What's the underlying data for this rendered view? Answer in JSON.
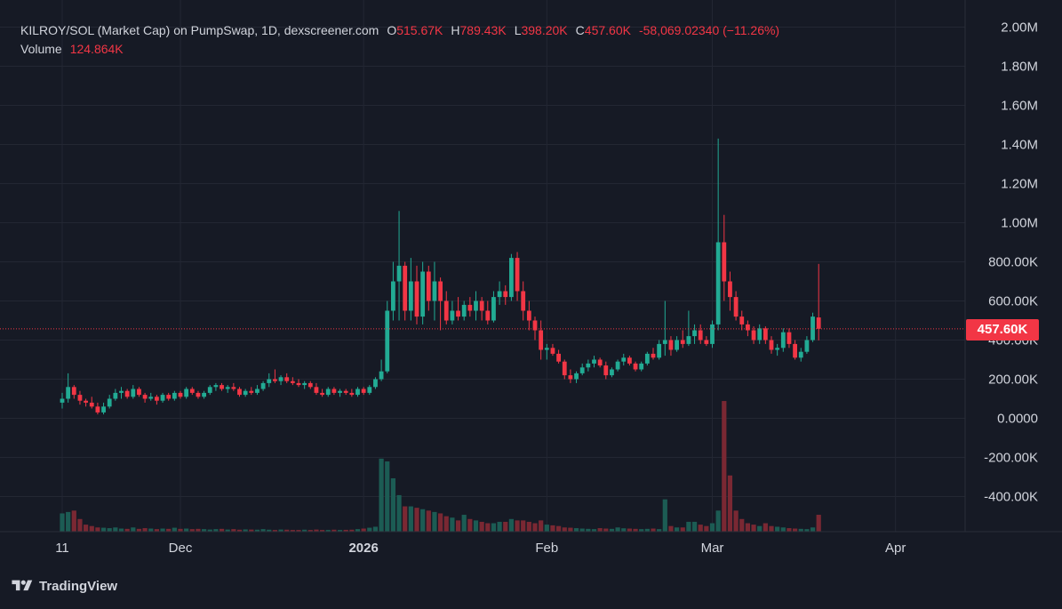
{
  "legend": {
    "title": "KILROY/SOL (Market Cap) on PumpSwap, 1D, dexscreener.com",
    "open_label": "O",
    "open": "515.67K",
    "high_label": "H",
    "high": "789.43K",
    "low_label": "L",
    "low": "398.20K",
    "close_label": "C",
    "close": "457.60K",
    "change": "-58,069.02340 (−11.26%)",
    "volume_label": "Volume",
    "volume": "124.864K"
  },
  "last_price_label": "457.60K",
  "branding": "TradingView",
  "colors": {
    "up": "#22ab94",
    "down": "#f23645",
    "background": "#161a25",
    "grid": "#232733",
    "text": "#d1d4dc",
    "volume_up": "#1c5c54",
    "volume_down": "#7a2833"
  },
  "chart_data": {
    "type": "candlestick",
    "title": "KILROY/SOL (Market Cap) on PumpSwap, 1D, dexscreener.com",
    "ylim": [
      -560000,
      2030000
    ],
    "y_ticks": [
      {
        "value": 2000000,
        "label": "2.00M"
      },
      {
        "value": 1800000,
        "label": "1.80M"
      },
      {
        "value": 1600000,
        "label": "1.60M"
      },
      {
        "value": 1400000,
        "label": "1.40M"
      },
      {
        "value": 1200000,
        "label": "1.20M"
      },
      {
        "value": 1000000,
        "label": "1.00M"
      },
      {
        "value": 800000,
        "label": "800.00K"
      },
      {
        "value": 600000,
        "label": "600.00K"
      },
      {
        "value": 400000,
        "label": "400.00K"
      },
      {
        "value": 200000,
        "label": "200.00K"
      },
      {
        "value": 0,
        "label": "0.0000"
      },
      {
        "value": -200000,
        "label": "-200.00K"
      },
      {
        "value": -400000,
        "label": "-400.00K"
      }
    ],
    "x_ticks": [
      {
        "day": 0,
        "label": "11"
      },
      {
        "day": 20,
        "label": "Dec"
      },
      {
        "day": 51,
        "label": "2026"
      },
      {
        "day": 82,
        "label": "Feb"
      },
      {
        "day": 110,
        "label": "Mar"
      },
      {
        "day": 141,
        "label": "Apr"
      }
    ],
    "grid": true,
    "last_price": 457600,
    "series": [
      {
        "name": "Market Cap",
        "ohlc": [
          [
            80000,
            130000,
            50000,
            100000
          ],
          [
            100000,
            230000,
            80000,
            160000
          ],
          [
            160000,
            170000,
            100000,
            120000
          ],
          [
            120000,
            140000,
            70000,
            90000
          ],
          [
            90000,
            100000,
            60000,
            80000
          ],
          [
            80000,
            110000,
            50000,
            60000
          ],
          [
            60000,
            80000,
            20000,
            30000
          ],
          [
            30000,
            80000,
            20000,
            60000
          ],
          [
            60000,
            120000,
            50000,
            100000
          ],
          [
            100000,
            150000,
            90000,
            130000
          ],
          [
            130000,
            160000,
            100000,
            140000
          ],
          [
            140000,
            150000,
            100000,
            110000
          ],
          [
            110000,
            170000,
            100000,
            150000
          ],
          [
            150000,
            160000,
            110000,
            120000
          ],
          [
            120000,
            130000,
            80000,
            100000
          ],
          [
            100000,
            130000,
            90000,
            110000
          ],
          [
            110000,
            120000,
            70000,
            90000
          ],
          [
            90000,
            130000,
            80000,
            120000
          ],
          [
            120000,
            130000,
            90000,
            100000
          ],
          [
            100000,
            140000,
            90000,
            130000
          ],
          [
            130000,
            140000,
            100000,
            110000
          ],
          [
            110000,
            160000,
            100000,
            150000
          ],
          [
            150000,
            160000,
            120000,
            130000
          ],
          [
            130000,
            140000,
            100000,
            110000
          ],
          [
            110000,
            140000,
            100000,
            130000
          ],
          [
            130000,
            170000,
            120000,
            160000
          ],
          [
            160000,
            180000,
            140000,
            170000
          ],
          [
            170000,
            180000,
            140000,
            150000
          ],
          [
            150000,
            170000,
            130000,
            160000
          ],
          [
            160000,
            180000,
            140000,
            150000
          ],
          [
            150000,
            160000,
            110000,
            120000
          ],
          [
            120000,
            150000,
            110000,
            140000
          ],
          [
            140000,
            160000,
            120000,
            130000
          ],
          [
            130000,
            170000,
            120000,
            150000
          ],
          [
            150000,
            190000,
            140000,
            180000
          ],
          [
            180000,
            230000,
            160000,
            200000
          ],
          [
            200000,
            250000,
            180000,
            190000
          ],
          [
            190000,
            220000,
            170000,
            210000
          ],
          [
            210000,
            230000,
            180000,
            190000
          ],
          [
            190000,
            210000,
            170000,
            180000
          ],
          [
            180000,
            200000,
            160000,
            170000
          ],
          [
            170000,
            190000,
            150000,
            180000
          ],
          [
            180000,
            190000,
            150000,
            160000
          ],
          [
            160000,
            180000,
            120000,
            130000
          ],
          [
            130000,
            150000,
            110000,
            120000
          ],
          [
            120000,
            160000,
            110000,
            150000
          ],
          [
            150000,
            160000,
            120000,
            130000
          ],
          [
            130000,
            150000,
            110000,
            140000
          ],
          [
            140000,
            150000,
            120000,
            130000
          ],
          [
            130000,
            150000,
            110000,
            120000
          ],
          [
            120000,
            160000,
            110000,
            150000
          ],
          [
            150000,
            160000,
            120000,
            130000
          ],
          [
            130000,
            170000,
            120000,
            160000
          ],
          [
            160000,
            210000,
            150000,
            200000
          ],
          [
            200000,
            300000,
            190000,
            240000
          ],
          [
            240000,
            600000,
            230000,
            550000
          ],
          [
            550000,
            800000,
            500000,
            700000
          ],
          [
            700000,
            1060000,
            500000,
            780000
          ],
          [
            780000,
            800000,
            500000,
            550000
          ],
          [
            550000,
            820000,
            500000,
            700000
          ],
          [
            700000,
            780000,
            480000,
            520000
          ],
          [
            520000,
            800000,
            480000,
            750000
          ],
          [
            750000,
            780000,
            550000,
            600000
          ],
          [
            600000,
            800000,
            500000,
            700000
          ],
          [
            700000,
            720000,
            450000,
            600000
          ],
          [
            600000,
            650000,
            480000,
            500000
          ],
          [
            500000,
            600000,
            480000,
            550000
          ],
          [
            550000,
            620000,
            500000,
            520000
          ],
          [
            520000,
            600000,
            500000,
            580000
          ],
          [
            580000,
            620000,
            520000,
            550000
          ],
          [
            550000,
            650000,
            500000,
            600000
          ],
          [
            600000,
            620000,
            500000,
            550000
          ],
          [
            550000,
            600000,
            480000,
            500000
          ],
          [
            500000,
            650000,
            490000,
            620000
          ],
          [
            620000,
            700000,
            580000,
            650000
          ],
          [
            650000,
            680000,
            580000,
            620000
          ],
          [
            620000,
            840000,
            600000,
            820000
          ],
          [
            820000,
            850000,
            600000,
            650000
          ],
          [
            650000,
            700000,
            500000,
            550000
          ],
          [
            550000,
            600000,
            450000,
            500000
          ],
          [
            500000,
            520000,
            400000,
            450000
          ],
          [
            450000,
            500000,
            300000,
            350000
          ],
          [
            350000,
            380000,
            300000,
            360000
          ],
          [
            360000,
            380000,
            320000,
            330000
          ],
          [
            330000,
            350000,
            280000,
            290000
          ],
          [
            290000,
            300000,
            200000,
            220000
          ],
          [
            220000,
            250000,
            180000,
            200000
          ],
          [
            200000,
            240000,
            180000,
            230000
          ],
          [
            230000,
            280000,
            220000,
            260000
          ],
          [
            260000,
            300000,
            240000,
            280000
          ],
          [
            280000,
            320000,
            260000,
            300000
          ],
          [
            300000,
            310000,
            260000,
            270000
          ],
          [
            270000,
            290000,
            200000,
            220000
          ],
          [
            220000,
            260000,
            210000,
            250000
          ],
          [
            250000,
            300000,
            240000,
            290000
          ],
          [
            290000,
            330000,
            270000,
            310000
          ],
          [
            310000,
            320000,
            270000,
            280000
          ],
          [
            280000,
            290000,
            240000,
            250000
          ],
          [
            250000,
            290000,
            240000,
            280000
          ],
          [
            280000,
            340000,
            270000,
            330000
          ],
          [
            330000,
            360000,
            300000,
            310000
          ],
          [
            310000,
            400000,
            300000,
            380000
          ],
          [
            380000,
            600000,
            320000,
            400000
          ],
          [
            400000,
            420000,
            320000,
            350000
          ],
          [
            350000,
            420000,
            340000,
            400000
          ],
          [
            400000,
            450000,
            360000,
            380000
          ],
          [
            380000,
            550000,
            370000,
            420000
          ],
          [
            420000,
            480000,
            380000,
            450000
          ],
          [
            450000,
            480000,
            380000,
            400000
          ],
          [
            400000,
            420000,
            370000,
            380000
          ],
          [
            380000,
            500000,
            360000,
            480000
          ],
          [
            480000,
            1430000,
            450000,
            900000
          ],
          [
            900000,
            1040000,
            600000,
            700000
          ],
          [
            700000,
            750000,
            550000,
            620000
          ],
          [
            620000,
            650000,
            500000,
            520000
          ],
          [
            520000,
            550000,
            450000,
            480000
          ],
          [
            480000,
            500000,
            420000,
            450000
          ],
          [
            450000,
            470000,
            380000,
            400000
          ],
          [
            400000,
            480000,
            380000,
            460000
          ],
          [
            460000,
            470000,
            380000,
            400000
          ],
          [
            400000,
            420000,
            330000,
            350000
          ],
          [
            350000,
            380000,
            320000,
            360000
          ],
          [
            360000,
            460000,
            340000,
            440000
          ],
          [
            440000,
            460000,
            360000,
            380000
          ],
          [
            380000,
            400000,
            300000,
            310000
          ],
          [
            310000,
            360000,
            290000,
            340000
          ],
          [
            340000,
            420000,
            330000,
            400000
          ],
          [
            400000,
            540000,
            390000,
            520000
          ],
          [
            515670,
            789430,
            398200,
            457600
          ]
        ]
      },
      {
        "name": "Volume",
        "volume": [
          130,
          140,
          150,
          90,
          50,
          40,
          30,
          28,
          25,
          30,
          22,
          20,
          30,
          20,
          25,
          22,
          18,
          22,
          20,
          28,
          20,
          22,
          18,
          20,
          18,
          15,
          18,
          20,
          15,
          18,
          14,
          16,
          15,
          14,
          18,
          14,
          12,
          15,
          14,
          12,
          12,
          14,
          12,
          15,
          12,
          12,
          14,
          12,
          13,
          14,
          18,
          22,
          28,
          35,
          520,
          500,
          380,
          260,
          180,
          180,
          170,
          160,
          150,
          140,
          130,
          110,
          100,
          80,
          120,
          90,
          80,
          70,
          60,
          60,
          70,
          70,
          90,
          80,
          80,
          70,
          60,
          80,
          50,
          45,
          40,
          30,
          28,
          25,
          22,
          20,
          18,
          25,
          22,
          20,
          30,
          24,
          22,
          20,
          18,
          20,
          22,
          18,
          230,
          40,
          30,
          30,
          70,
          70,
          50,
          40,
          60,
          150,
          930,
          400,
          150,
          90,
          60,
          50,
          40,
          60,
          40,
          35,
          30,
          25,
          22,
          20,
          18,
          30,
          120
        ]
      }
    ]
  }
}
